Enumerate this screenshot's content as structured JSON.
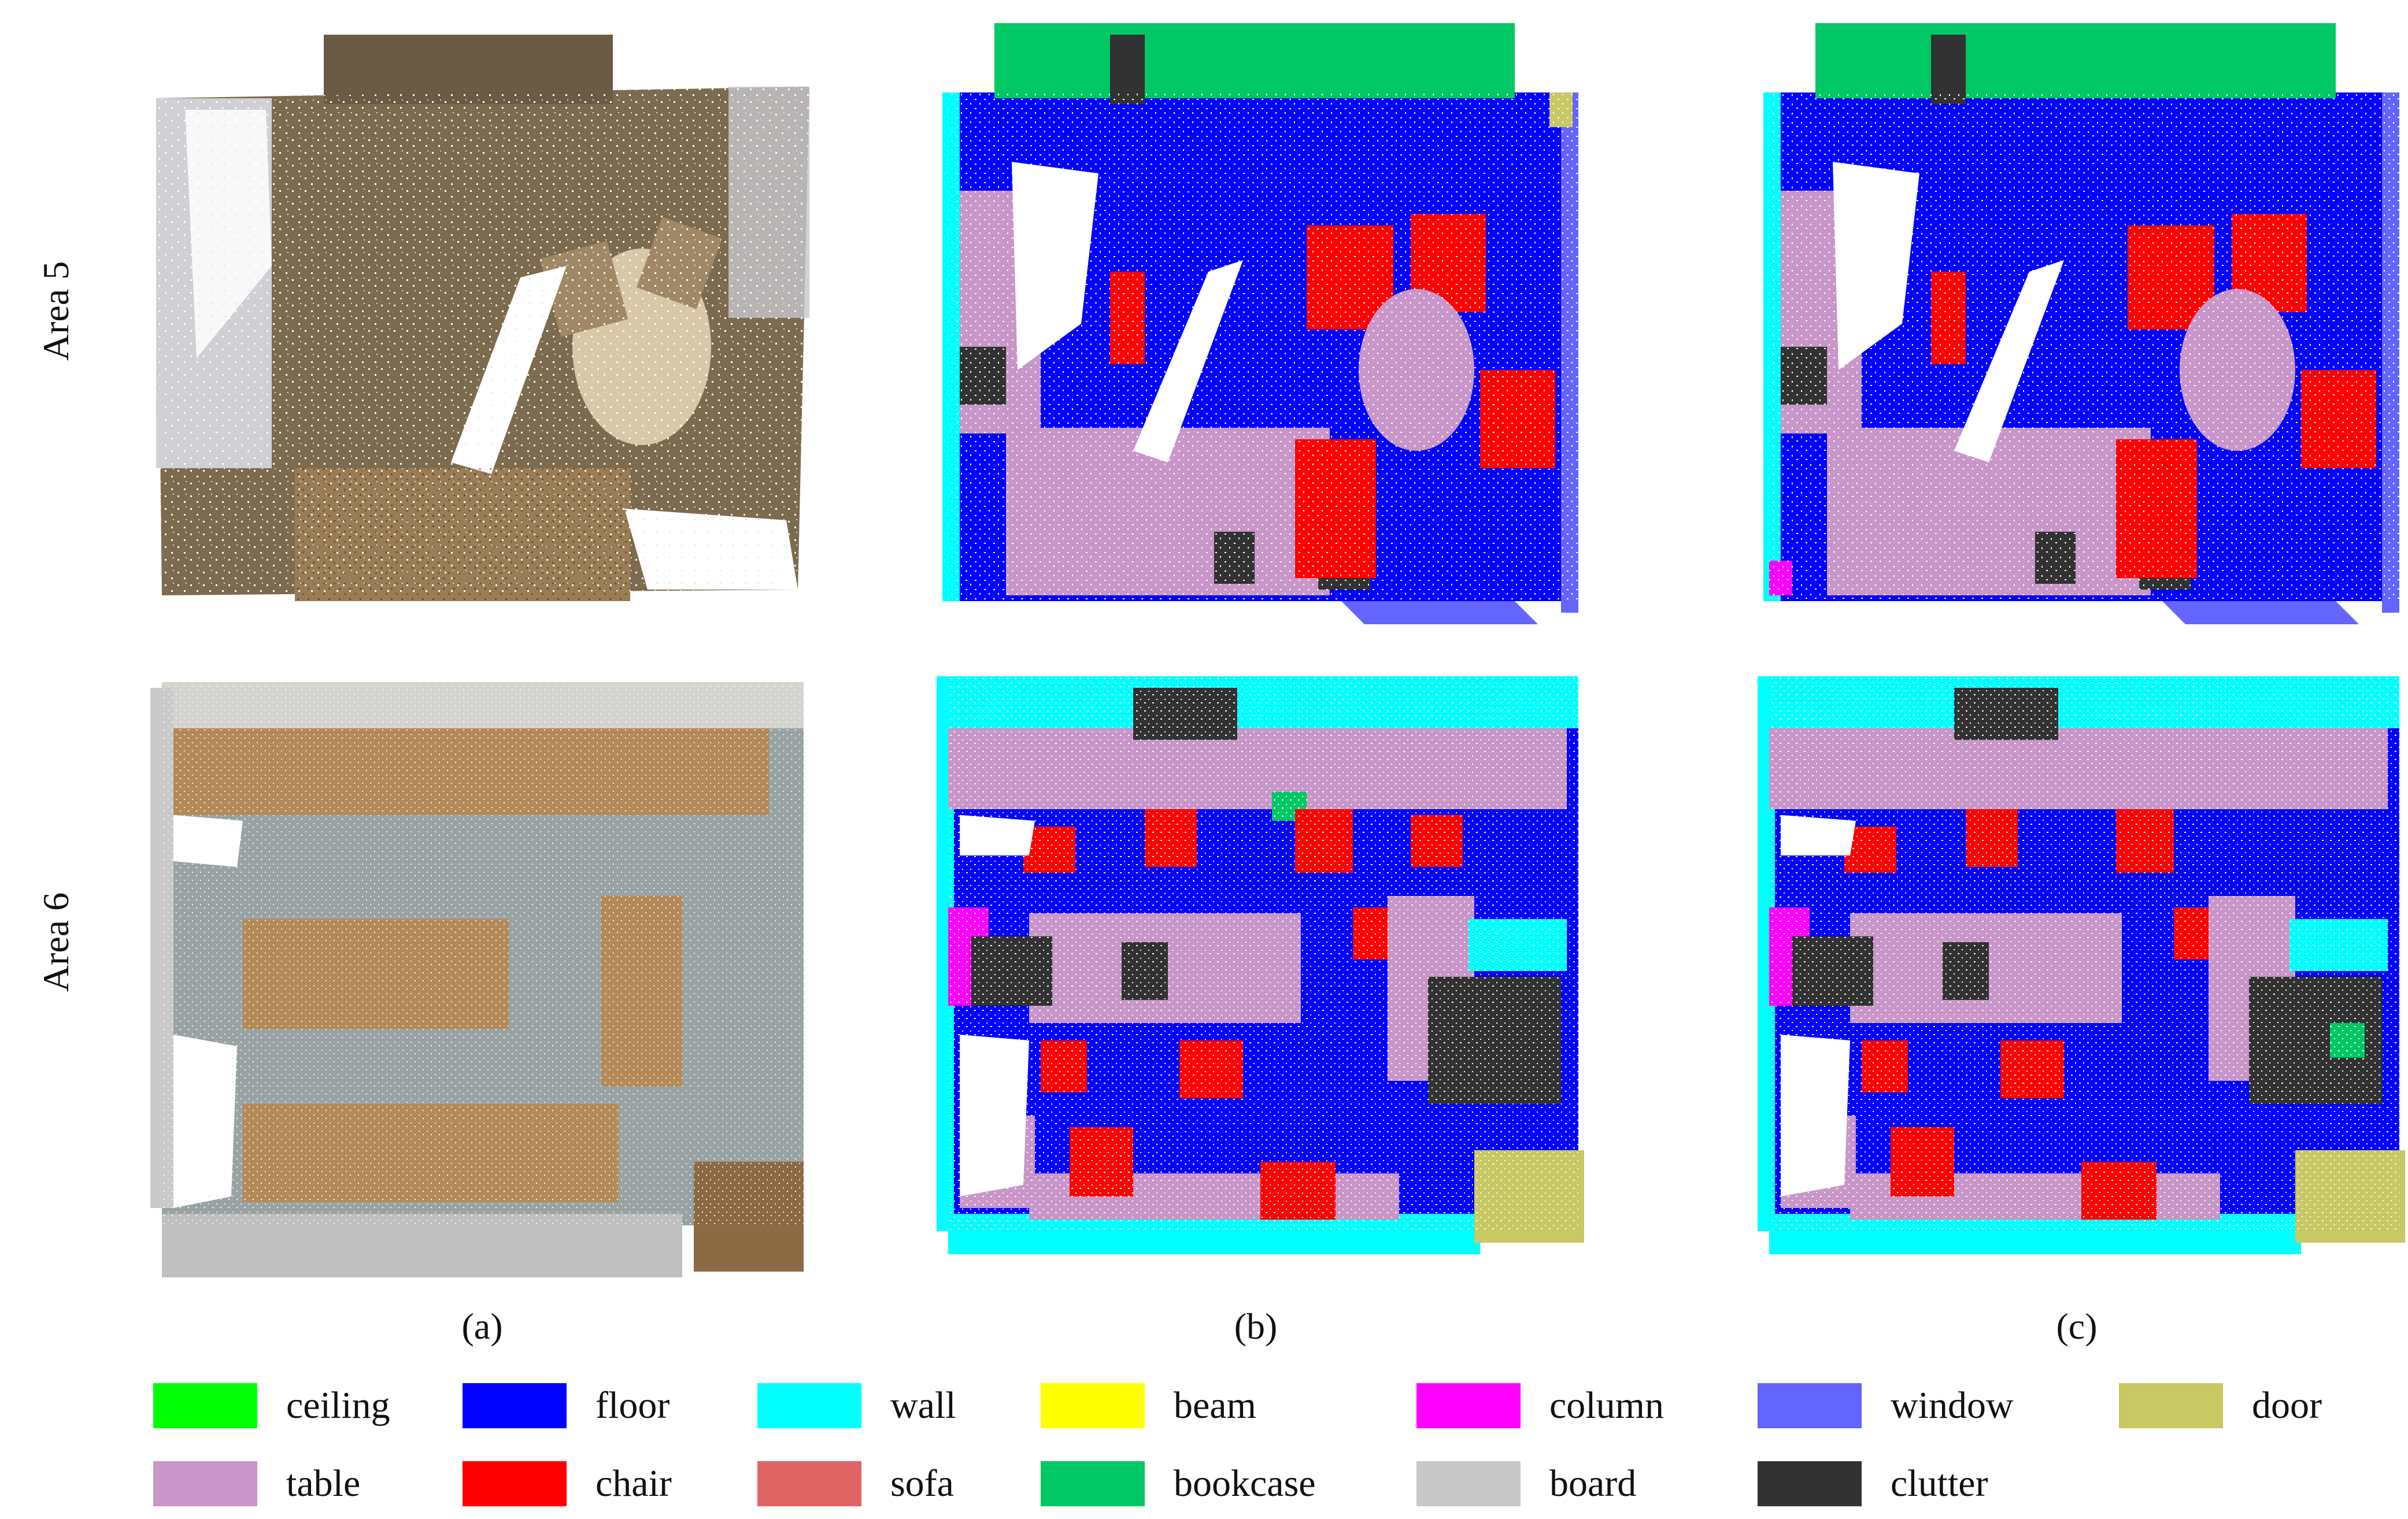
{
  "row_labels": [
    "Area 5",
    "Area 6"
  ],
  "captions": [
    "(a)",
    "(b)",
    "(c)"
  ],
  "legend": [
    {
      "label": "ceiling",
      "color": "#00ff00"
    },
    {
      "label": "floor",
      "color": "#0000ff"
    },
    {
      "label": "wall",
      "color": "#00ffff"
    },
    {
      "label": "beam",
      "color": "#ffff00"
    },
    {
      "label": "column",
      "color": "#ff00ff"
    },
    {
      "label": "window",
      "color": "#6464ff"
    },
    {
      "label": "door",
      "color": "#c8c864"
    },
    {
      "label": "table",
      "color": "#c896c8"
    },
    {
      "label": "chair",
      "color": "#ff0000"
    },
    {
      "label": "sofa",
      "color": "#e06464"
    },
    {
      "label": "bookcase",
      "color": "#00c864"
    },
    {
      "label": "board",
      "color": "#c8c8c8"
    },
    {
      "label": "clutter",
      "color": "#323232"
    }
  ]
}
